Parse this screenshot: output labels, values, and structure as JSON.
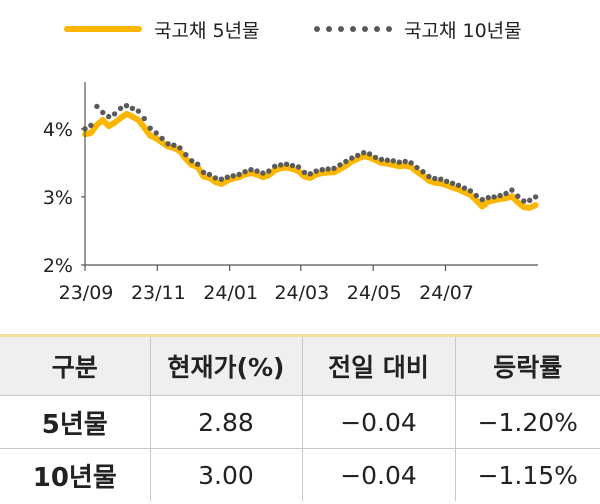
{
  "legend": {
    "series1": "국고채 5년물",
    "series2": "국고채 10년물"
  },
  "colors": {
    "series1": "#FBB600",
    "series2": "#5A5A5A",
    "axis": "#555555",
    "header_bg": "#EFEFEF"
  },
  "chart_data": {
    "type": "line",
    "x_ticks": [
      "23/09",
      "23/11",
      "24/01",
      "24/03",
      "24/05",
      "24/07"
    ],
    "y_ticks": [
      "2%",
      "3%",
      "4%"
    ],
    "ylim": [
      2.0,
      4.6
    ],
    "xlim": [
      "2023-09-01",
      "2024-09-17"
    ],
    "grid": false,
    "legend_position": "top",
    "series": [
      {
        "name": "국고채 5년물",
        "style": "solid",
        "points": [
          [
            "2023-09-01",
            3.92
          ],
          [
            "2023-09-06",
            3.94
          ],
          [
            "2023-09-11",
            4.06
          ],
          [
            "2023-09-16",
            4.13
          ],
          [
            "2023-09-21",
            4.04
          ],
          [
            "2023-09-26",
            4.09
          ],
          [
            "2023-10-01",
            4.16
          ],
          [
            "2023-10-06",
            4.22
          ],
          [
            "2023-10-11",
            4.18
          ],
          [
            "2023-10-16",
            4.13
          ],
          [
            "2023-10-21",
            4.02
          ],
          [
            "2023-10-26",
            3.9
          ],
          [
            "2023-10-31",
            3.86
          ],
          [
            "2023-11-05",
            3.8
          ],
          [
            "2023-11-10",
            3.74
          ],
          [
            "2023-11-15",
            3.72
          ],
          [
            "2023-11-20",
            3.67
          ],
          [
            "2023-11-25",
            3.56
          ],
          [
            "2023-11-30",
            3.47
          ],
          [
            "2023-12-05",
            3.44
          ],
          [
            "2023-12-10",
            3.3
          ],
          [
            "2023-12-15",
            3.28
          ],
          [
            "2023-12-20",
            3.22
          ],
          [
            "2023-12-25",
            3.19
          ],
          [
            "2023-12-30",
            3.24
          ],
          [
            "2024-01-04",
            3.27
          ],
          [
            "2024-01-09",
            3.29
          ],
          [
            "2024-01-14",
            3.33
          ],
          [
            "2024-01-19",
            3.35
          ],
          [
            "2024-01-24",
            3.33
          ],
          [
            "2024-01-29",
            3.29
          ],
          [
            "2024-02-03",
            3.32
          ],
          [
            "2024-02-08",
            3.39
          ],
          [
            "2024-02-13",
            3.42
          ],
          [
            "2024-02-18",
            3.43
          ],
          [
            "2024-02-23",
            3.41
          ],
          [
            "2024-02-28",
            3.38
          ],
          [
            "2024-03-04",
            3.3
          ],
          [
            "2024-03-09",
            3.28
          ],
          [
            "2024-03-14",
            3.33
          ],
          [
            "2024-03-19",
            3.35
          ],
          [
            "2024-03-24",
            3.36
          ],
          [
            "2024-03-29",
            3.36
          ],
          [
            "2024-04-03",
            3.41
          ],
          [
            "2024-04-08",
            3.46
          ],
          [
            "2024-04-13",
            3.52
          ],
          [
            "2024-04-18",
            3.56
          ],
          [
            "2024-04-23",
            3.6
          ],
          [
            "2024-04-28",
            3.58
          ],
          [
            "2024-05-03",
            3.54
          ],
          [
            "2024-05-08",
            3.5
          ],
          [
            "2024-05-13",
            3.49
          ],
          [
            "2024-05-18",
            3.47
          ],
          [
            "2024-05-23",
            3.45
          ],
          [
            "2024-05-28",
            3.46
          ],
          [
            "2024-06-02",
            3.44
          ],
          [
            "2024-06-07",
            3.37
          ],
          [
            "2024-06-12",
            3.31
          ],
          [
            "2024-06-17",
            3.24
          ],
          [
            "2024-06-22",
            3.21
          ],
          [
            "2024-06-27",
            3.2
          ],
          [
            "2024-07-02",
            3.17
          ],
          [
            "2024-07-07",
            3.14
          ],
          [
            "2024-07-12",
            3.11
          ],
          [
            "2024-07-17",
            3.07
          ],
          [
            "2024-07-22",
            3.03
          ],
          [
            "2024-07-27",
            2.95
          ],
          [
            "2024-08-01",
            2.86
          ],
          [
            "2024-08-06",
            2.93
          ],
          [
            "2024-08-11",
            2.95
          ],
          [
            "2024-08-16",
            2.97
          ],
          [
            "2024-08-21",
            2.98
          ],
          [
            "2024-08-26",
            3.01
          ],
          [
            "2024-08-31",
            2.92
          ],
          [
            "2024-09-05",
            2.85
          ],
          [
            "2024-09-10",
            2.84
          ],
          [
            "2024-09-15",
            2.88
          ]
        ]
      },
      {
        "name": "국고채 10년물",
        "style": "dotted",
        "points": [
          [
            "2023-09-01",
            4.0
          ],
          [
            "2023-09-06",
            4.05
          ],
          [
            "2023-09-11",
            4.33
          ],
          [
            "2023-09-16",
            4.24
          ],
          [
            "2023-09-21",
            4.18
          ],
          [
            "2023-09-26",
            4.22
          ],
          [
            "2023-10-01",
            4.3
          ],
          [
            "2023-10-06",
            4.34
          ],
          [
            "2023-10-11",
            4.3
          ],
          [
            "2023-10-16",
            4.26
          ],
          [
            "2023-10-21",
            4.15
          ],
          [
            "2023-10-26",
            4.01
          ],
          [
            "2023-10-31",
            3.94
          ],
          [
            "2023-11-05",
            3.86
          ],
          [
            "2023-11-10",
            3.78
          ],
          [
            "2023-11-15",
            3.76
          ],
          [
            "2023-11-20",
            3.72
          ],
          [
            "2023-11-25",
            3.62
          ],
          [
            "2023-11-30",
            3.53
          ],
          [
            "2023-12-05",
            3.48
          ],
          [
            "2023-12-10",
            3.36
          ],
          [
            "2023-12-15",
            3.33
          ],
          [
            "2023-12-20",
            3.28
          ],
          [
            "2023-12-25",
            3.26
          ],
          [
            "2023-12-30",
            3.29
          ],
          [
            "2024-01-04",
            3.31
          ],
          [
            "2024-01-09",
            3.33
          ],
          [
            "2024-01-14",
            3.37
          ],
          [
            "2024-01-19",
            3.4
          ],
          [
            "2024-01-24",
            3.38
          ],
          [
            "2024-01-29",
            3.35
          ],
          [
            "2024-02-03",
            3.38
          ],
          [
            "2024-02-08",
            3.45
          ],
          [
            "2024-02-13",
            3.47
          ],
          [
            "2024-02-18",
            3.48
          ],
          [
            "2024-02-23",
            3.46
          ],
          [
            "2024-02-28",
            3.44
          ],
          [
            "2024-03-04",
            3.36
          ],
          [
            "2024-03-09",
            3.34
          ],
          [
            "2024-03-14",
            3.38
          ],
          [
            "2024-03-19",
            3.4
          ],
          [
            "2024-03-24",
            3.41
          ],
          [
            "2024-03-29",
            3.42
          ],
          [
            "2024-04-03",
            3.47
          ],
          [
            "2024-04-08",
            3.52
          ],
          [
            "2024-04-13",
            3.57
          ],
          [
            "2024-04-18",
            3.61
          ],
          [
            "2024-04-23",
            3.65
          ],
          [
            "2024-04-28",
            3.63
          ],
          [
            "2024-05-03",
            3.58
          ],
          [
            "2024-05-08",
            3.55
          ],
          [
            "2024-05-13",
            3.54
          ],
          [
            "2024-05-18",
            3.53
          ],
          [
            "2024-05-23",
            3.51
          ],
          [
            "2024-05-28",
            3.52
          ],
          [
            "2024-06-02",
            3.5
          ],
          [
            "2024-06-07",
            3.43
          ],
          [
            "2024-06-12",
            3.37
          ],
          [
            "2024-06-17",
            3.3
          ],
          [
            "2024-06-22",
            3.27
          ],
          [
            "2024-06-27",
            3.26
          ],
          [
            "2024-07-02",
            3.23
          ],
          [
            "2024-07-07",
            3.2
          ],
          [
            "2024-07-12",
            3.17
          ],
          [
            "2024-07-17",
            3.13
          ],
          [
            "2024-07-22",
            3.09
          ],
          [
            "2024-07-27",
            3.02
          ],
          [
            "2024-08-01",
            2.96
          ],
          [
            "2024-08-06",
            2.99
          ],
          [
            "2024-08-11",
            3.0
          ],
          [
            "2024-08-16",
            3.02
          ],
          [
            "2024-08-21",
            3.05
          ],
          [
            "2024-08-26",
            3.1
          ],
          [
            "2024-08-31",
            3.01
          ],
          [
            "2024-09-05",
            2.94
          ],
          [
            "2024-09-10",
            2.95
          ],
          [
            "2024-09-15",
            3.0
          ]
        ]
      }
    ]
  },
  "table": {
    "headers": [
      "구분",
      "현재가(%)",
      "전일 대비",
      "등락률"
    ],
    "rows": [
      [
        "5년물",
        "2.88",
        "−0.04",
        "−1.20%"
      ],
      [
        "10년물",
        "3.00",
        "−0.04",
        "−1.15%"
      ]
    ]
  }
}
